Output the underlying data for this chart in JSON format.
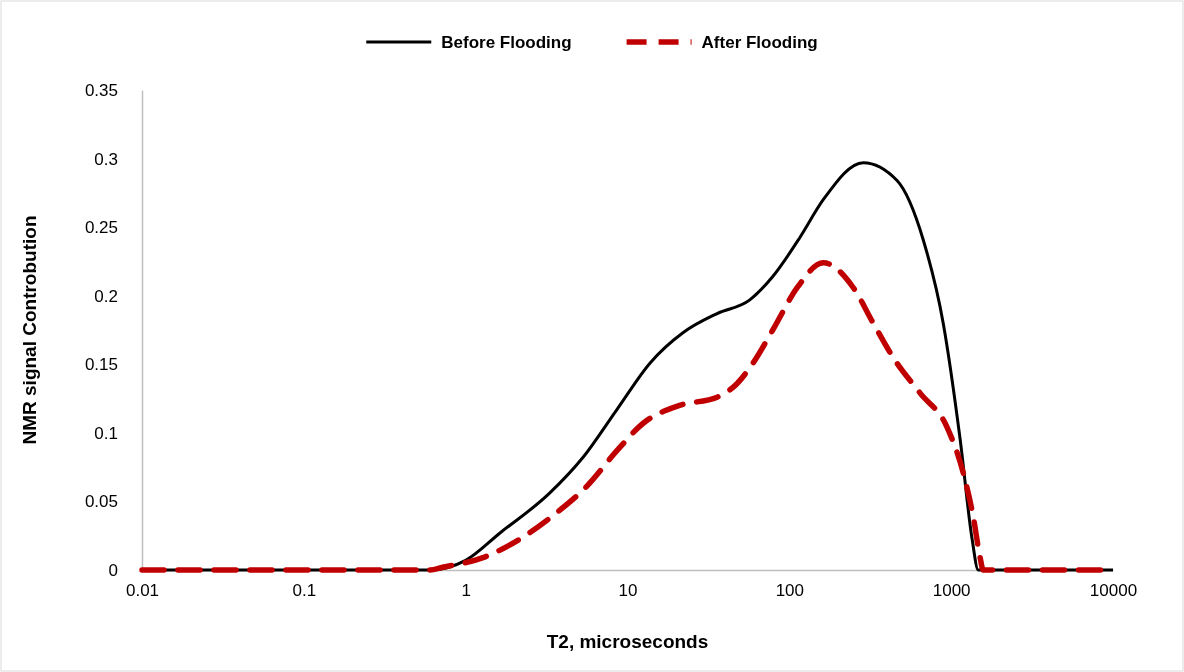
{
  "chart_data": {
    "type": "line",
    "xlabel": "T2, microseconds",
    "ylabel": "NMR signal Controbution",
    "log": "x",
    "xlim": [
      0.01,
      10000
    ],
    "xticks": [
      0.01,
      0.1,
      1,
      10,
      100,
      1000,
      10000
    ],
    "ylim": [
      0,
      0.35
    ],
    "yticks": [
      0,
      0.05,
      0.1,
      0.15,
      0.2,
      0.25,
      0.3,
      0.35
    ],
    "grid": false,
    "legend": "top",
    "marker": "none",
    "series": [
      {
        "name": "Before Flooding",
        "color": "#000000",
        "line_style": "solid",
        "x": [
          0.01,
          0.1,
          0.6,
          1,
          1.63,
          3.3,
          5.3,
          8.6,
          13.8,
          22,
          35.8,
          57,
          79,
          117,
          162,
          286,
          463,
          671,
          893,
          1137,
          1349,
          1469,
          2000,
          10000
        ],
        "values": [
          0,
          0,
          0,
          0.007,
          0.027,
          0.056,
          0.082,
          0.117,
          0.151,
          0.173,
          0.187,
          0.197,
          0.214,
          0.243,
          0.27,
          0.297,
          0.284,
          0.241,
          0.18,
          0.095,
          0.022,
          0,
          0,
          0
        ]
      },
      {
        "name": "After Flooding",
        "color": "#c00000",
        "line_style": "dashed",
        "x": [
          0.01,
          0.1,
          0.6,
          0.72,
          1.28,
          2.26,
          3.67,
          5.6,
          8.6,
          12.5,
          21,
          35.8,
          47.6,
          59.7,
          79,
          112,
          162,
          248,
          330,
          438,
          643,
          944,
          1186,
          1368,
          1510,
          1578,
          2000,
          10000
        ],
        "values": [
          0,
          0,
          0,
          0.002,
          0.009,
          0.024,
          0.042,
          0.061,
          0.087,
          0.107,
          0.12,
          0.126,
          0.136,
          0.151,
          0.175,
          0.206,
          0.224,
          0.206,
          0.18,
          0.155,
          0.129,
          0.104,
          0.071,
          0.039,
          0.009,
          0,
          0,
          0
        ]
      }
    ]
  }
}
